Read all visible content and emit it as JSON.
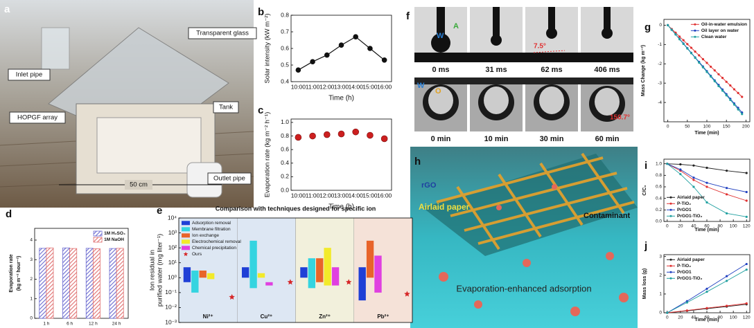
{
  "figure_a": {
    "label": "a",
    "texts": [
      "Transparent glass",
      "Inlet pipe",
      "HOPGF array",
      "Tank",
      "Outlet pipe",
      "50 cm"
    ]
  },
  "figure_f": {
    "label": "f",
    "top": {
      "phases": [
        "W",
        "A"
      ],
      "times": [
        "0 ms",
        "31 ms",
        "62 ms",
        "406 ms"
      ],
      "angle": "7.5°"
    },
    "bottom": {
      "phases": [
        "W",
        "O"
      ],
      "times": [
        "0 min",
        "10 min",
        "30 min",
        "60 min"
      ],
      "angle": "150.7°"
    }
  },
  "figure_h": {
    "label": "h",
    "texts": [
      "rGO",
      "Airlaid paper",
      "Contaminant",
      "Evaporation-enhanced adsorption"
    ]
  },
  "chart_data": [
    {
      "label": "b",
      "type": "line",
      "x_label": "Time (h)",
      "y_label": "Solar intensity (kW m⁻²)",
      "categories": [
        "10:00",
        "11:00",
        "12:00",
        "13:00",
        "14:00",
        "15:00",
        "16:00"
      ],
      "values": [
        0.47,
        0.52,
        0.56,
        0.62,
        0.67,
        0.6,
        0.53
      ],
      "color": "#111111",
      "ylim": [
        0.4,
        0.8
      ],
      "yticks": [
        0.4,
        0.5,
        0.6,
        0.7,
        0.8
      ]
    },
    {
      "label": "c",
      "type": "scatter",
      "x_label": "Time (h)",
      "y_label": "Evaporation rate (kg m⁻² h⁻¹)",
      "categories": [
        "10:00",
        "11:00",
        "12:00",
        "13:00",
        "14:00",
        "15:00",
        "16:00"
      ],
      "values": [
        0.78,
        0.8,
        0.82,
        0.83,
        0.86,
        0.81,
        0.76
      ],
      "color": "#cc1f1f",
      "ylim": [
        0,
        1.05
      ],
      "yticks": [
        {
          "value": 0,
          "label": "0.0"
        },
        0.2,
        0.4,
        0.6,
        0.8,
        {
          "value": 1,
          "label": "1.0"
        }
      ]
    },
    {
      "label": "d",
      "type": "bar",
      "y_label": [
        "Evaporation rate",
        "(kg m⁻² hour⁻¹)"
      ],
      "categories": [
        "1 h",
        "6 h",
        "12 h",
        "24 h"
      ],
      "series": [
        {
          "name": "1M H₂SO₄",
          "color": "#6a6ad0",
          "values": [
            3.58,
            3.6,
            3.58,
            3.57
          ]
        },
        {
          "name": "1M NaOH",
          "color": "#e07070",
          "values": [
            3.6,
            3.57,
            3.56,
            3.58
          ]
        }
      ],
      "ylim": [
        0,
        4.6
      ],
      "yticks": [
        0,
        1,
        2,
        3,
        4
      ],
      "legend": "upper right"
    },
    {
      "label": "e",
      "type": "range-bar",
      "title": "Comparison with techniques designed for specific ion",
      "y_label": [
        "Ion residual in",
        "purified water (mg liter⁻¹)"
      ],
      "y_scale": "log",
      "categories": [
        "Ni²⁺",
        "Cu²⁺",
        "Zn²⁺",
        "Pb²⁺"
      ],
      "category_colors": [
        "#dde7f3",
        "#dde7f3",
        "#f2f0dc",
        "#f5e2d8"
      ],
      "series": [
        {
          "name": "Adsorption removal",
          "color": "#1f3fd6",
          "low": [
            0.5,
            1,
            1,
            0.03
          ],
          "high": [
            5,
            5,
            5,
            5
          ]
        },
        {
          "name": "Membrane filtration",
          "color": "#35d4e0",
          "low": [
            0.1,
            0.2,
            0.2,
            null
          ],
          "high": [
            3,
            300,
            20,
            null
          ]
        },
        {
          "name": "Ion exchange",
          "color": "#e8642a",
          "low": [
            1,
            null,
            0.5,
            1
          ],
          "high": [
            3,
            null,
            20,
            300
          ]
        },
        {
          "name": "Electrochemical removal",
          "color": "#f2ea2a",
          "low": [
            0.8,
            1,
            0.3,
            null
          ],
          "high": [
            2,
            2,
            100,
            null
          ]
        },
        {
          "name": "Chemical precipitation",
          "color": "#e040e0",
          "low": [
            null,
            0.3,
            0.3,
            0.1
          ],
          "high": [
            null,
            0.5,
            5,
            30
          ]
        },
        {
          "name": "Ours",
          "color": "#d62728",
          "values": [
            0.05,
            0.5,
            0.5,
            0.08
          ]
        }
      ],
      "ylim": [
        0.001,
        10000
      ],
      "yticks": [
        {
          "value": 0.001,
          "label": "10⁻³"
        },
        {
          "value": 0.01,
          "label": "10⁻²"
        },
        {
          "value": 0.1,
          "label": "10⁻¹"
        },
        {
          "value": 1,
          "label": "10⁰"
        },
        {
          "value": 10,
          "label": "10¹"
        },
        {
          "value": 100,
          "label": "10²"
        },
        {
          "value": 1000,
          "label": "10³"
        },
        {
          "value": 10000,
          "label": "10⁴"
        }
      ],
      "legend": "upper left"
    },
    {
      "label": "g",
      "type": "line",
      "x_label": "Time (min)",
      "y_label": "Mass Change (kg m⁻²)",
      "x": [
        0,
        10,
        20,
        30,
        40,
        50,
        60,
        70,
        80,
        90,
        100,
        110,
        120,
        130,
        140,
        150,
        160,
        170,
        180,
        190
      ],
      "series": [
        {
          "name": "Oil-in-water emulsion",
          "color": "#e03030",
          "values": [
            0,
            -0.2,
            -0.39,
            -0.59,
            -0.78,
            -0.98,
            -1.17,
            -1.37,
            -1.56,
            -1.76,
            -1.95,
            -2.15,
            -2.34,
            -2.54,
            -2.73,
            -2.93,
            -3.12,
            -3.32,
            -3.51,
            -3.71
          ]
        },
        {
          "name": "Oil layer on water",
          "color": "#2040c0",
          "values": [
            0,
            -0.24,
            -0.48,
            -0.71,
            -0.95,
            -1.19,
            -1.43,
            -1.67,
            -1.9,
            -2.14,
            -2.38,
            -2.62,
            -2.86,
            -3.09,
            -3.33,
            -3.57,
            -3.81,
            -4.05,
            -4.28,
            -4.52
          ]
        },
        {
          "name": "Clean water",
          "color": "#20a0a0",
          "values": [
            0,
            -0.24,
            -0.48,
            -0.73,
            -0.97,
            -1.21,
            -1.45,
            -1.69,
            -1.94,
            -2.18,
            -2.42,
            -2.66,
            -2.9,
            -3.15,
            -3.39,
            -3.63,
            -3.87,
            -4.11,
            -4.36,
            -4.6
          ]
        }
      ],
      "xlim": [
        -10,
        210
      ],
      "xticks": [
        0,
        50,
        100,
        150,
        200
      ],
      "ylim": [
        -5,
        0.3
      ],
      "yticks": [
        -4,
        -3,
        -2,
        -1,
        0
      ],
      "legend": "upper right"
    },
    {
      "label": "i",
      "type": "line",
      "x_label": "Time (min)",
      "y_label": "C/C₀",
      "x": [
        0,
        20,
        40,
        60,
        90,
        120
      ],
      "series": [
        {
          "name": "Airlaid paper",
          "color": "#222222",
          "values": [
            1,
            0.99,
            0.97,
            0.93,
            0.88,
            0.84
          ]
        },
        {
          "name": "P-TiO₂",
          "color": "#e03030",
          "values": [
            1,
            0.88,
            0.72,
            0.6,
            0.47,
            0.36
          ]
        },
        {
          "name": "PrGO1",
          "color": "#2040c0",
          "values": [
            1,
            0.9,
            0.76,
            0.67,
            0.58,
            0.51
          ]
        },
        {
          "name": "PrGO1-TiO₂",
          "color": "#20a0a0",
          "values": [
            1,
            0.82,
            0.6,
            0.33,
            0.14,
            0.08
          ]
        }
      ],
      "xlim": [
        -5,
        125
      ],
      "xticks": [
        0,
        20,
        40,
        60,
        80,
        100,
        120
      ],
      "ylim": [
        0,
        1.08
      ],
      "yticks": [
        {
          "value": 0,
          "label": "0.0"
        },
        0.2,
        0.4,
        0.6,
        0.8,
        {
          "value": 1,
          "label": "1.0"
        }
      ],
      "legend": "lower left"
    },
    {
      "label": "j",
      "type": "line",
      "x_label": "Time (min)",
      "y_label": "Mass loss (g)",
      "x": [
        0,
        30,
        60,
        90,
        120
      ],
      "series": [
        {
          "name": "Airlaid paper",
          "color": "#222222",
          "values": [
            0,
            0.1,
            0.22,
            0.33,
            0.45
          ]
        },
        {
          "name": "P-TiO₂",
          "color": "#e03030",
          "values": [
            0,
            0.12,
            0.25,
            0.37,
            0.5
          ]
        },
        {
          "name": "PrGO1",
          "color": "#2040c0",
          "values": [
            0,
            0.62,
            1.28,
            1.95,
            2.6
          ]
        },
        {
          "name": "PrGO1-TiO₂",
          "color": "#20a0a0",
          "values": [
            0,
            0.55,
            1.12,
            1.7,
            2.3
          ]
        }
      ],
      "xlim": [
        -5,
        125
      ],
      "xticks": [
        0,
        20,
        40,
        60,
        80,
        100,
        120
      ],
      "ylim": [
        0,
        3.1
      ],
      "yticks": [
        0,
        1,
        2,
        3
      ],
      "legend": "upper left"
    }
  ]
}
